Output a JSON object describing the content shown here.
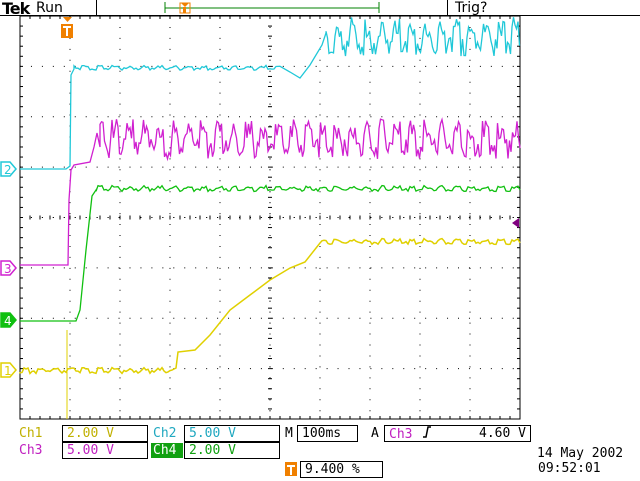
{
  "header": {
    "brand": "Tek",
    "state": "Run",
    "trigger_status": "Trig?"
  },
  "channels": [
    {
      "id": "ch1",
      "marker": "1",
      "label": "Ch1",
      "scale": "2.00 V",
      "color": "#e0d000"
    },
    {
      "id": "ch2",
      "marker": "2",
      "label": "Ch2",
      "scale": "5.00 V",
      "color": "#20c8d8"
    },
    {
      "id": "ch3",
      "marker": "3",
      "label": "Ch3",
      "scale": "5.00 V",
      "color": "#d020d0"
    },
    {
      "id": "ch4",
      "marker": "4",
      "label": "Ch4",
      "scale": "2.00 V",
      "color": "#10c010"
    }
  ],
  "timebase": {
    "prefix": "M",
    "value": "100ms"
  },
  "trigger": {
    "mode": "A",
    "source": "Ch3",
    "slope_icon": "rising-edge-icon",
    "level": "4.60 V",
    "position_icon": "T",
    "position": "9.400 %"
  },
  "timestamp": {
    "date": "14 May 2002",
    "time": "09:52:01"
  },
  "colors": {
    "trigger_marker": "#f08000",
    "grid": "#000000"
  }
}
